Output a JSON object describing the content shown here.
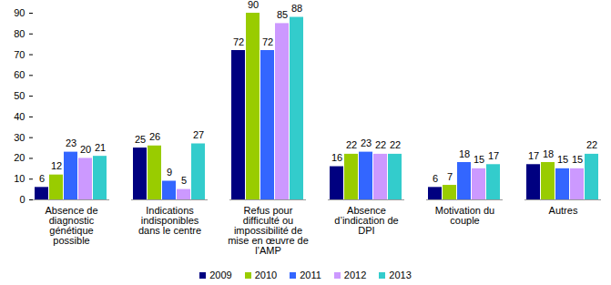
{
  "chart_data": {
    "type": "bar",
    "categories": [
      "Absence de diagnostic génétique possible",
      "Indications indisponibles dans le centre",
      "Refus pour difficulté ou impossibilité de mise en œuvre de l’AMP",
      "Absence d’indication de DPI",
      "Motivation du couple",
      "Autres"
    ],
    "series": [
      {
        "name": "2009",
        "color": "#000080",
        "values": [
          6,
          25,
          72,
          16,
          6,
          17
        ]
      },
      {
        "name": "2010",
        "color": "#99cc00",
        "values": [
          12,
          26,
          90,
          22,
          7,
          18
        ]
      },
      {
        "name": "2011",
        "color": "#3366ff",
        "values": [
          23,
          9,
          72,
          23,
          18,
          15
        ]
      },
      {
        "name": "2012",
        "color": "#cc99ff",
        "values": [
          20,
          5,
          85,
          22,
          15,
          15
        ]
      },
      {
        "name": "2013",
        "color": "#33cccc",
        "values": [
          21,
          27,
          88,
          22,
          17,
          22
        ]
      }
    ],
    "ylim": [
      0,
      90
    ],
    "yticks": [
      0,
      10,
      20,
      30,
      40,
      50,
      60,
      70,
      80,
      90
    ],
    "grid": false,
    "data_labels": true,
    "legend": "bottom"
  }
}
